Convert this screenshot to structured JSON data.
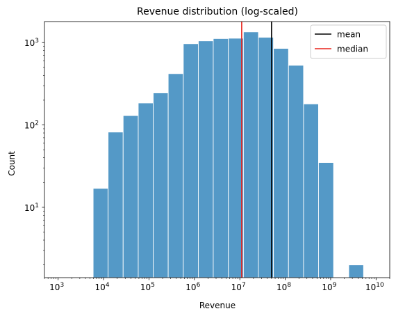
{
  "chart_data": {
    "type": "bar",
    "title": "Revenue distribution (log-scaled)",
    "xlabel": "Revenue",
    "ylabel": "Count",
    "x_scale": "log10",
    "y_scale": "log10",
    "xlim": [
      500,
      20000000000
    ],
    "ylim": [
      1.4,
      1800
    ],
    "x_ticks": [
      {
        "value": 1000,
        "base": "10",
        "exp": "3"
      },
      {
        "value": 10000,
        "base": "10",
        "exp": "4"
      },
      {
        "value": 100000,
        "base": "10",
        "exp": "5"
      },
      {
        "value": 1000000,
        "base": "10",
        "exp": "6"
      },
      {
        "value": 10000000,
        "base": "10",
        "exp": "7"
      },
      {
        "value": 100000000,
        "base": "10",
        "exp": "8"
      },
      {
        "value": 1000000000,
        "base": "10",
        "exp": "9"
      },
      {
        "value": 10000000000,
        "base": "10",
        "exp": "10"
      }
    ],
    "y_ticks": [
      {
        "value": 10,
        "base": "10",
        "exp": "1"
      },
      {
        "value": 100,
        "base": "10",
        "exp": "2"
      },
      {
        "value": 1000,
        "base": "10",
        "exp": "3"
      }
    ],
    "bins": [
      {
        "lo": 5900.0,
        "hi": 12600.0,
        "count": 17
      },
      {
        "lo": 12600.0,
        "hi": 27000.0,
        "count": 82
      },
      {
        "lo": 27000.0,
        "hi": 58000.0,
        "count": 130
      },
      {
        "lo": 58000.0,
        "hi": 124000.0,
        "count": 185
      },
      {
        "lo": 124000.0,
        "hi": 265000.0,
        "count": 245
      },
      {
        "lo": 265000.0,
        "hi": 570000.0,
        "count": 420
      },
      {
        "lo": 570000.0,
        "hi": 1220000.0,
        "count": 970
      },
      {
        "lo": 1220000.0,
        "hi": 2600000.0,
        "count": 1050
      },
      {
        "lo": 2600000.0,
        "hi": 5600000.0,
        "count": 1120
      },
      {
        "lo": 5600000.0,
        "hi": 12000000.0,
        "count": 1130
      },
      {
        "lo": 12000000.0,
        "hi": 25700000.0,
        "count": 1350
      },
      {
        "lo": 25700000.0,
        "hi": 55000000.0,
        "count": 1160
      },
      {
        "lo": 55000000.0,
        "hi": 118000000.0,
        "count": 850
      },
      {
        "lo": 118000000.0,
        "hi": 253000000.0,
        "count": 530
      },
      {
        "lo": 253000000.0,
        "hi": 540000000.0,
        "count": 180
      },
      {
        "lo": 540000000.0,
        "hi": 1160000000.0,
        "count": 35
      },
      {
        "lo": 2500000000.0,
        "hi": 5300000000.0,
        "count": 2
      }
    ],
    "bar_color": "#5499c7",
    "lines": [
      {
        "name": "mean",
        "x": 50000000.0,
        "color": "#000000"
      },
      {
        "name": "median",
        "x": 11000000.0,
        "color": "#e8231c"
      }
    ],
    "legend": {
      "position": "top-right",
      "entries": [
        "mean",
        "median"
      ]
    },
    "grid": false
  }
}
